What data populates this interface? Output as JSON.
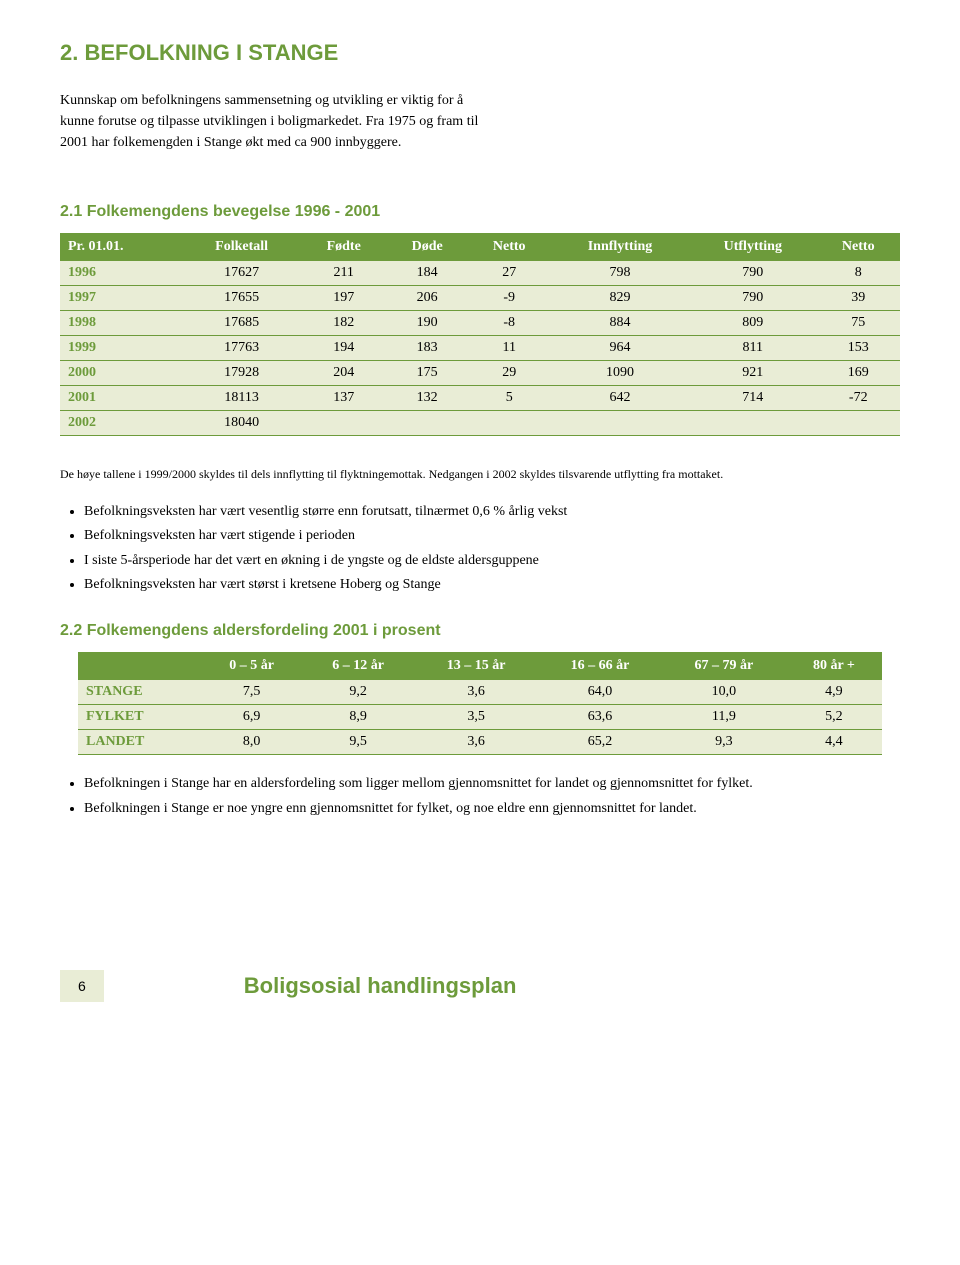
{
  "colors": {
    "accent": "#6d9b3b",
    "table_row_bg": "#e9edd6",
    "text": "#000000",
    "page_bg": "#ffffff"
  },
  "typography": {
    "heading_font": "Arial, sans-serif",
    "body_font": "Georgia, serif",
    "heading_fontsize": 22,
    "subheading_fontsize": 16,
    "body_fontsize": 14,
    "note_fontsize": 12
  },
  "heading": "2. BEFOLKNING I STANGE",
  "intro": "Kunnskap om befolkningens sammensetning og utvikling er viktig for å kunne forutse og tilpasse utviklingen i boligmarkedet. Fra 1975 og fram til 2001 har folkemengden i Stange økt med ca 900 innbyggere.",
  "section21": {
    "title": "2.1 Folkemengdens bevegelse 1996 - 2001",
    "table": {
      "type": "table",
      "columns": [
        "Pr. 01.01.",
        "Folketall",
        "Fødte",
        "Døde",
        "Netto",
        "Innflytting",
        "Utflytting",
        "Netto"
      ],
      "rows": [
        [
          "1996",
          "17627",
          "211",
          "184",
          "27",
          "798",
          "790",
          "8"
        ],
        [
          "1997",
          "17655",
          "197",
          "206",
          "-9",
          "829",
          "790",
          "39"
        ],
        [
          "1998",
          "17685",
          "182",
          "190",
          "-8",
          "884",
          "809",
          "75"
        ],
        [
          "1999",
          "17763",
          "194",
          "183",
          "11",
          "964",
          "811",
          "153"
        ],
        [
          "2000",
          "17928",
          "204",
          "175",
          "29",
          "1090",
          "921",
          "169"
        ],
        [
          "2001",
          "18113",
          "137",
          "132",
          "5",
          "642",
          "714",
          "-72"
        ],
        [
          "2002",
          "18040",
          "",
          "",
          "",
          "",
          "",
          ""
        ]
      ],
      "header_bg": "#6d9b3b",
      "header_color": "#ffffff",
      "row_bg": "#e9edd6",
      "row_border": "#6d9b3b",
      "first_col_color": "#6d9b3b"
    }
  },
  "note": "De høye tallene i 1999/2000 skyldes til dels innflytting til flyktningemottak. Nedgangen i 2002 skyldes tilsvarende utflytting fra mottaket.",
  "bullets1": [
    "Befolkningsveksten har vært vesentlig større enn forutsatt, tilnærmet 0,6 % årlig vekst",
    "Befolkningsveksten har vært stigende i perioden",
    "I siste 5-årsperiode har det vært en økning i de yngste og de eldste aldersguppene",
    "Befolkningsveksten har vært størst i kretsene Hoberg og Stange"
  ],
  "section22": {
    "title": "2.2 Folkemengdens aldersfordeling 2001 i prosent",
    "table": {
      "type": "table",
      "columns": [
        "",
        "0 – 5 år",
        "6 – 12 år",
        "13 – 15 år",
        "16 – 66 år",
        "67 – 79 år",
        "80 år +"
      ],
      "rows": [
        [
          "STANGE",
          "7,5",
          "9,2",
          "3,6",
          "64,0",
          "10,0",
          "4,9"
        ],
        [
          "FYLKET",
          "6,9",
          "8,9",
          "3,5",
          "63,6",
          "11,9",
          "5,2"
        ],
        [
          "LANDET",
          "8,0",
          "9,5",
          "3,6",
          "65,2",
          "9,3",
          "4,4"
        ]
      ],
      "header_bg": "#6d9b3b",
      "header_color": "#ffffff",
      "row_bg": "#e9edd6",
      "row_border": "#6d9b3b",
      "first_col_color": "#6d9b3b"
    }
  },
  "bullets2": [
    "Befolkningen i Stange har en aldersfordeling som ligger mellom gjennomsnittet for landet og gjennomsnittet for fylket.",
    "Befolkningen i Stange er noe yngre enn gjennomsnittet for fylket, og noe eldre enn gjennomsnittet for landet."
  ],
  "footer": {
    "page_num": "6",
    "title": "Boligsosial handlingsplan"
  }
}
